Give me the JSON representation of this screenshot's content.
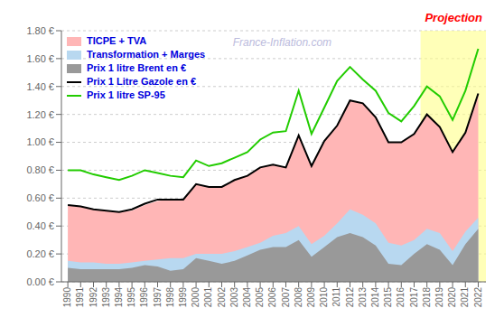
{
  "chart_data": {
    "type": "area",
    "x": [
      1990,
      1991,
      1992,
      1993,
      1994,
      1995,
      1996,
      1997,
      1998,
      1999,
      2000,
      2001,
      2002,
      2003,
      2004,
      2005,
      2006,
      2007,
      2008,
      2009,
      2010,
      2011,
      2012,
      2013,
      2014,
      2015,
      2016,
      2017,
      2018,
      2019,
      2020,
      2021,
      2022
    ],
    "series": [
      {
        "name": "TICPE + TVA",
        "type": "area",
        "color": "#FFB6B6",
        "values": [
          0.55,
          0.54,
          0.52,
          0.51,
          0.5,
          0.51,
          0.55,
          0.58,
          0.59,
          0.59,
          0.7,
          0.68,
          0.68,
          0.73,
          0.76,
          0.82,
          0.84,
          0.82,
          1.05,
          0.83,
          1.01,
          1.12,
          1.3,
          1.28,
          1.18,
          1.0,
          1.0,
          1.06,
          1.2,
          1.11,
          0.93,
          1.07,
          1.35
        ]
      },
      {
        "name": "Transformation + Marges",
        "type": "area",
        "color": "#B8D8F0",
        "values": [
          0.15,
          0.14,
          0.14,
          0.13,
          0.13,
          0.14,
          0.15,
          0.16,
          0.17,
          0.17,
          0.2,
          0.2,
          0.2,
          0.22,
          0.25,
          0.28,
          0.33,
          0.35,
          0.4,
          0.27,
          0.33,
          0.42,
          0.52,
          0.48,
          0.42,
          0.28,
          0.26,
          0.3,
          0.38,
          0.35,
          0.22,
          0.36,
          0.46
        ]
      },
      {
        "name": "Prix 1 litre Brent en €",
        "type": "area",
        "color": "#999999",
        "values": [
          0.1,
          0.09,
          0.09,
          0.09,
          0.09,
          0.1,
          0.12,
          0.11,
          0.08,
          0.09,
          0.17,
          0.15,
          0.13,
          0.15,
          0.19,
          0.23,
          0.25,
          0.25,
          0.3,
          0.18,
          0.25,
          0.32,
          0.35,
          0.32,
          0.26,
          0.13,
          0.12,
          0.2,
          0.27,
          0.23,
          0.12,
          0.27,
          0.38
        ]
      },
      {
        "name": "Prix 1 Litre Gazole en €",
        "type": "line",
        "color": "#000000",
        "values": [
          0.55,
          0.54,
          0.52,
          0.51,
          0.5,
          0.52,
          0.56,
          0.59,
          0.59,
          0.59,
          0.7,
          0.68,
          0.68,
          0.73,
          0.76,
          0.82,
          0.84,
          0.82,
          1.05,
          0.83,
          1.01,
          1.12,
          1.3,
          1.28,
          1.18,
          1.0,
          1.0,
          1.06,
          1.2,
          1.11,
          0.93,
          1.07,
          1.35
        ]
      },
      {
        "name": "Prix 1 litre SP-95",
        "type": "line",
        "color": "#22CC00",
        "values": [
          0.8,
          0.8,
          0.77,
          0.75,
          0.73,
          0.76,
          0.8,
          0.78,
          0.76,
          0.75,
          0.87,
          0.83,
          0.85,
          0.89,
          0.93,
          1.02,
          1.07,
          1.08,
          1.37,
          1.06,
          1.25,
          1.44,
          1.54,
          1.45,
          1.37,
          1.21,
          1.15,
          1.26,
          1.4,
          1.33,
          1.16,
          1.37,
          1.67
        ]
      }
    ],
    "xlim": [
      1989.5,
      2022.6
    ],
    "xticks": [
      1990,
      1991,
      1992,
      1993,
      1994,
      1995,
      1996,
      1997,
      1998,
      1999,
      2000,
      2001,
      2002,
      2003,
      2004,
      2005,
      2006,
      2007,
      2008,
      2009,
      2010,
      2011,
      2012,
      2013,
      2014,
      2015,
      2016,
      2017,
      2018,
      2019,
      2020,
      2021,
      2022
    ],
    "ylim": [
      0.0,
      1.8
    ],
    "yticks": [
      {
        "value": 0.0,
        "label": "0.00 €"
      },
      {
        "value": 0.2,
        "label": "0.20 €"
      },
      {
        "value": 0.4,
        "label": "0.40 €"
      },
      {
        "value": 0.6,
        "label": "0.60 €"
      },
      {
        "value": 0.8,
        "label": "0.80 €"
      },
      {
        "value": 1.0,
        "label": "1.00 €"
      },
      {
        "value": 1.2,
        "label": "1.20 €"
      },
      {
        "value": 1.4,
        "label": "1.40 €"
      },
      {
        "value": 1.6,
        "label": "1.60 €"
      },
      {
        "value": 1.8,
        "label": "1.80 €"
      }
    ],
    "grid": true,
    "legend": "upper left",
    "annotations": [
      {
        "text": "France-Inflation.com",
        "color": "#BBBBDD"
      },
      {
        "text": "Projection",
        "color": "#FF0000",
        "x": 2017.5,
        "band_color": "#FFFF88"
      }
    ]
  }
}
